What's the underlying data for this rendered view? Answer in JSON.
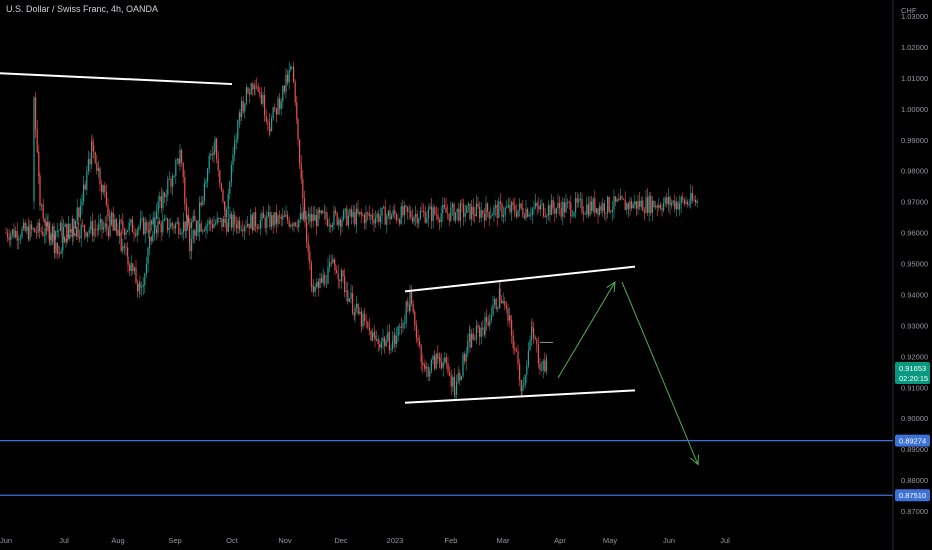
{
  "header": {
    "title": "U.S. Dollar / Swiss Franc, 4h, OANDA",
    "currency": "CHF"
  },
  "price_badge": {
    "price": "0.91653",
    "countdown": "02:20:15",
    "color": "#089981"
  },
  "level_labels": [
    {
      "value": 0.89274,
      "label": "0.89274",
      "color": "#3d72d9"
    },
    {
      "value": 0.8751,
      "label": "0.87510",
      "color": "#3d72d9"
    }
  ],
  "colors": {
    "up": "#26a69a",
    "down": "#ef5350",
    "trendline": "#ffffff",
    "arrow": "#4caf50",
    "background": "#000000"
  },
  "chart_data": {
    "type": "candlestick",
    "symbol": "U.S. Dollar / Swiss Franc",
    "timeframe": "4h",
    "source": "OANDA",
    "ylim": [
      0.865,
      1.037
    ],
    "y_ticks": [
      "1.03000",
      "1.02000",
      "1.01000",
      "1.00000",
      "0.99000",
      "0.98000",
      "0.97000",
      "0.96000",
      "0.95000",
      "0.94000",
      "0.93000",
      "0.92000",
      "0.91000",
      "0.90000",
      "0.89000",
      "0.88000",
      "0.87000"
    ],
    "x_ticks": [
      "Jun",
      "Jul",
      "Aug",
      "Sep",
      "Oct",
      "Nov",
      "Dec",
      "2023",
      "Feb",
      "Mar",
      "Apr",
      "May",
      "Jun",
      "Jul"
    ],
    "last_price": 0.91653,
    "path": [
      [
        "Jun",
        0.96
      ],
      [
        "Jun 20",
        0.97
      ],
      [
        "Jun 30",
        1.005
      ],
      [
        "Jul 5",
        0.97
      ],
      [
        "Jul 20",
        0.952
      ],
      [
        "Jul 28",
        0.97
      ],
      [
        "Aug 1",
        0.988
      ],
      [
        "Aug 10",
        0.965
      ],
      [
        "Aug 20",
        0.952
      ],
      [
        "Aug 28",
        0.94
      ],
      [
        "Sep 5",
        0.965
      ],
      [
        "Sep 10",
        0.985
      ],
      [
        "Sep 20",
        0.955
      ],
      [
        "Sep 25",
        0.99
      ],
      [
        "Oct 1",
        0.965
      ],
      [
        "Oct 5",
        1.0
      ],
      [
        "Oct 15",
        1.01
      ],
      [
        "Oct 25",
        0.995
      ],
      [
        "Nov 1",
        1.013
      ],
      [
        "Nov 5",
        0.99
      ],
      [
        "Nov 15",
        0.965
      ],
      [
        "Nov 20",
        0.94
      ],
      [
        "Nov 30",
        0.95
      ],
      [
        "Dec 10",
        0.935
      ],
      [
        "Dec 20",
        0.925
      ],
      [
        "2023",
        0.925
      ],
      [
        "Jan 8",
        0.938
      ],
      [
        "Jan 15",
        0.915
      ],
      [
        "Jan 25",
        0.92
      ],
      [
        "Feb 1",
        0.91
      ],
      [
        "Feb 10",
        0.925
      ],
      [
        "Feb 20",
        0.93
      ],
      [
        "Mar 1",
        0.94
      ],
      [
        "Mar 5",
        0.93
      ],
      [
        "Mar 10",
        0.91
      ],
      [
        "Mar 15",
        0.928
      ],
      [
        "Mar 20",
        0.918
      ],
      [
        "Mar 27",
        0.9165
      ]
    ],
    "annotations": {
      "resistance_line": [
        [
          "May",
          1.0115
        ],
        [
          "Oct",
          1.008
        ]
      ],
      "channel_top": [
        [
          "Jan 5",
          0.941
        ],
        [
          "Apr 20",
          0.949
        ]
      ],
      "channel_bottom": [
        [
          "Jan 5",
          0.905
        ],
        [
          "Apr 20",
          0.909
        ]
      ],
      "arrow_up": [
        [
          "Mar 28",
          0.913
        ],
        [
          "Apr 25",
          0.944
        ]
      ],
      "arrow_down": [
        [
          "May 5",
          0.944
        ],
        [
          "Jun 20",
          0.885
        ]
      ],
      "horizontal_levels": [
        0.89274,
        0.8751
      ]
    },
    "grid": false
  }
}
